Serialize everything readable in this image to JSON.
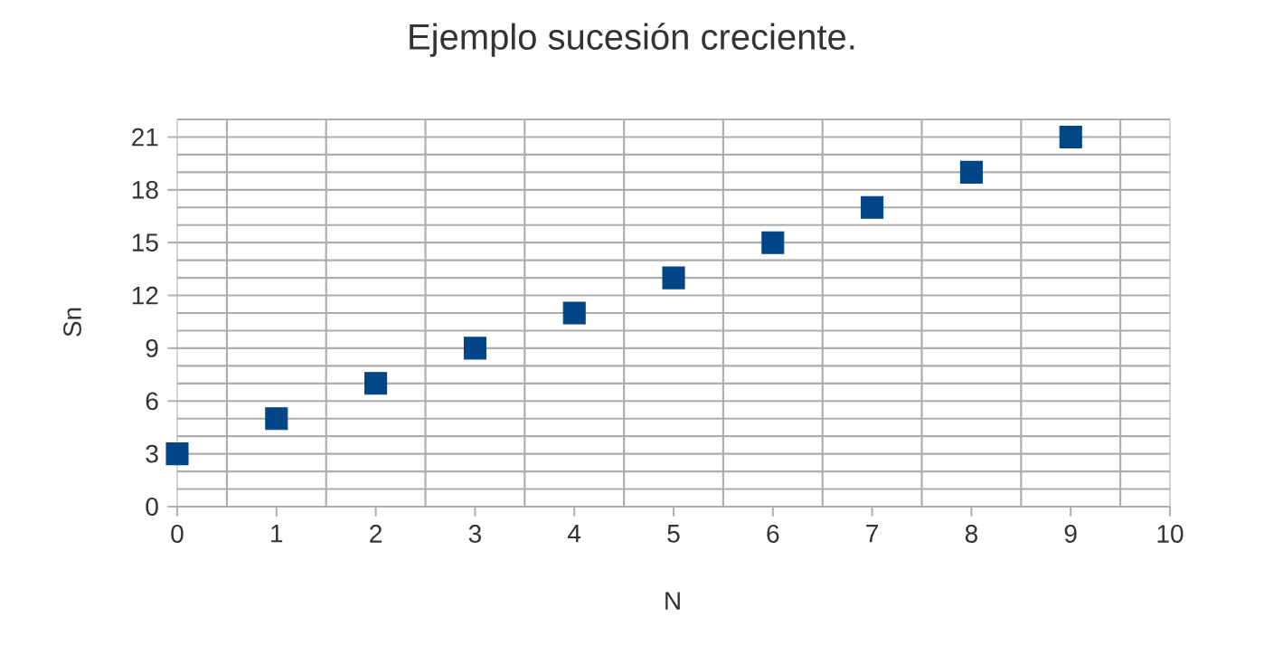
{
  "chart_data": {
    "type": "scatter",
    "title": "Ejemplo sucesión creciente.",
    "xlabel": "N",
    "ylabel": "Sn",
    "x": [
      0,
      1,
      2,
      3,
      4,
      5,
      6,
      7,
      8,
      9
    ],
    "series": [
      {
        "color": "#004586",
        "values": [
          3,
          5,
          7,
          9,
          11,
          13,
          15,
          17,
          19,
          21
        ]
      }
    ],
    "xlim": [
      0,
      10
    ],
    "ylim": [
      0,
      22
    ],
    "xticks": [
      0,
      1,
      2,
      3,
      4,
      5,
      6,
      7,
      8,
      9,
      10
    ],
    "yticks": [
      0,
      3,
      6,
      9,
      12,
      15,
      18,
      21
    ],
    "grid": true,
    "marker": "square"
  }
}
